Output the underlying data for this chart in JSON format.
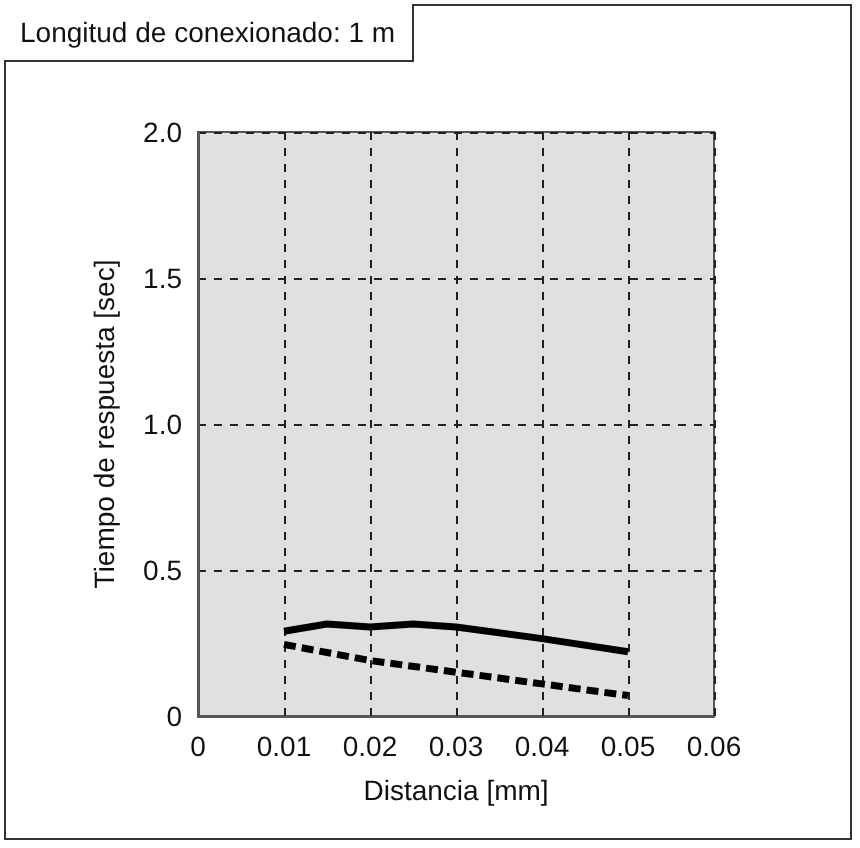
{
  "chart_data": {
    "type": "line",
    "title": "Longitud de conexionado: 1 m",
    "xlabel": "Distancia [mm]",
    "ylabel": "Tiempo de respuesta [sec]",
    "x": [
      0.01,
      0.015,
      0.02,
      0.025,
      0.03,
      0.04,
      0.05
    ],
    "series": [
      {
        "color": "#000000",
        "line_style": "solid",
        "values": [
          0.29,
          0.315,
          0.305,
          0.315,
          0.305,
          0.265,
          0.22
        ]
      },
      {
        "color": "#000000",
        "line_style": "dashed",
        "x": [
          0.01,
          0.02,
          0.03,
          0.04,
          0.05
        ],
        "values": [
          0.245,
          0.19,
          0.15,
          0.11,
          0.07
        ]
      }
    ],
    "xlim": [
      0,
      0.06
    ],
    "xticks": [
      0,
      0.01,
      0.02,
      0.03,
      0.04,
      0.05,
      0.06
    ],
    "ylim": [
      0,
      2
    ],
    "yticks": [
      0,
      {
        "value": 0.5,
        "label": "0.5"
      },
      {
        "value": 1,
        "label": "1.0"
      },
      {
        "value": 1.5,
        "label": "1.5"
      },
      {
        "value": 2,
        "label": "2.0"
      }
    ],
    "grid": true,
    "marker": "none"
  }
}
